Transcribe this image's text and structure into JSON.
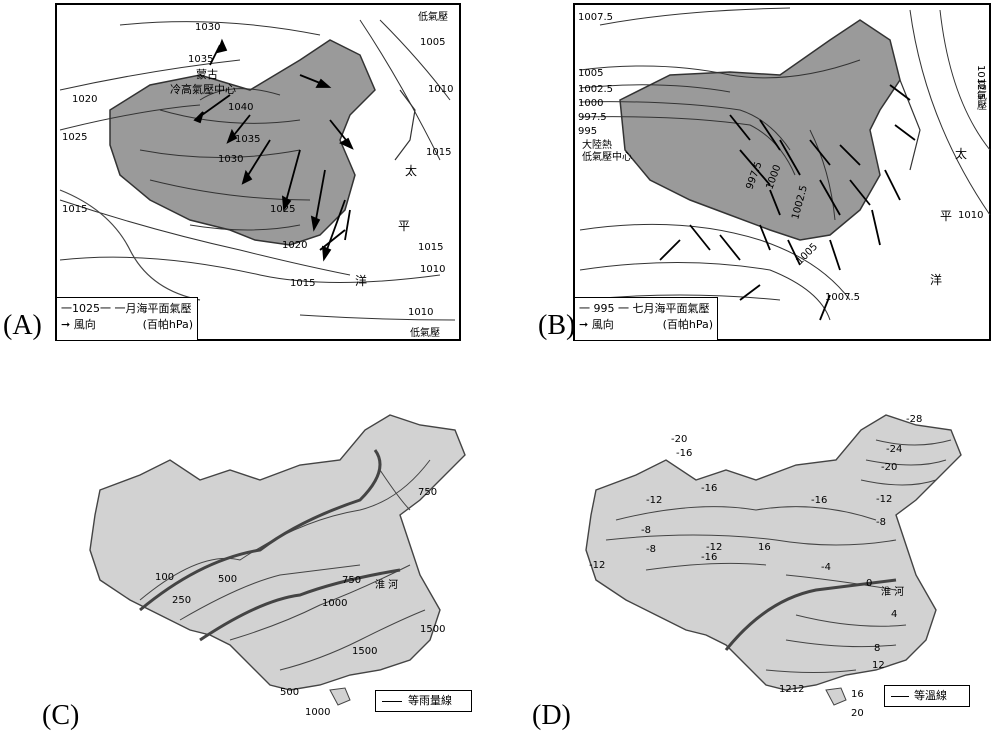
{
  "panels": {
    "A": {
      "label": "(A)",
      "legend_isobar": "一1025一 一月海平面氣壓",
      "legend_arrow": "風向",
      "legend_unit": "(百帕hPa)",
      "mongolia": "蒙古",
      "high_center": "冷高氣壓中心",
      "low_tr": "低氣壓",
      "low_br": "低氣壓",
      "tai": "太",
      "ping": "平",
      "yang": "洋",
      "isobars": [
        "1030",
        "1035",
        "1040",
        "1035",
        "1030",
        "1025",
        "1020",
        "1025",
        "1020",
        "1015",
        "1015",
        "1015",
        "1010",
        "1005",
        "1010",
        "1015",
        "1010"
      ]
    },
    "B": {
      "label": "(B)",
      "legend_isobar": "一 995 一 七月海平面氣壓",
      "legend_arrow": "風向",
      "legend_unit": "(百帕hPa)",
      "heat_low_1": "大陸熱",
      "heat_low_2": "低氣壓中心",
      "high_right": "高氣壓",
      "tai": "太",
      "ping": "平",
      "yang": "洋",
      "isobars": [
        "1007.5",
        "1005",
        "1002.5",
        "1000",
        "997.5",
        "995",
        "997.5",
        "1000",
        "1002.5",
        "1005",
        "1007.5",
        "1012.5",
        "1010"
      ]
    },
    "C": {
      "label": "(C)",
      "legend": "等雨量線",
      "huai": "淮 河",
      "isohyets": [
        "100",
        "250",
        "500",
        "750",
        "750",
        "1000",
        "1500",
        "1500",
        "500",
        "1000"
      ]
    },
    "D": {
      "label": "(D)",
      "legend": "等溫線",
      "huai": "淮 河",
      "isotherms": [
        "-28",
        "-24",
        "-20",
        "-20",
        "-16",
        "-16",
        "-16",
        "-12",
        "-12",
        "-12",
        "-12",
        "-8",
        "-8",
        "-8",
        "-16",
        "16",
        "-4",
        "0",
        "4",
        "8",
        "12",
        "1212",
        "16",
        "20"
      ]
    }
  },
  "colors": {
    "land_fill": "#9a9a9a",
    "china_fill": "#d2d2d2",
    "line": "#000000"
  }
}
